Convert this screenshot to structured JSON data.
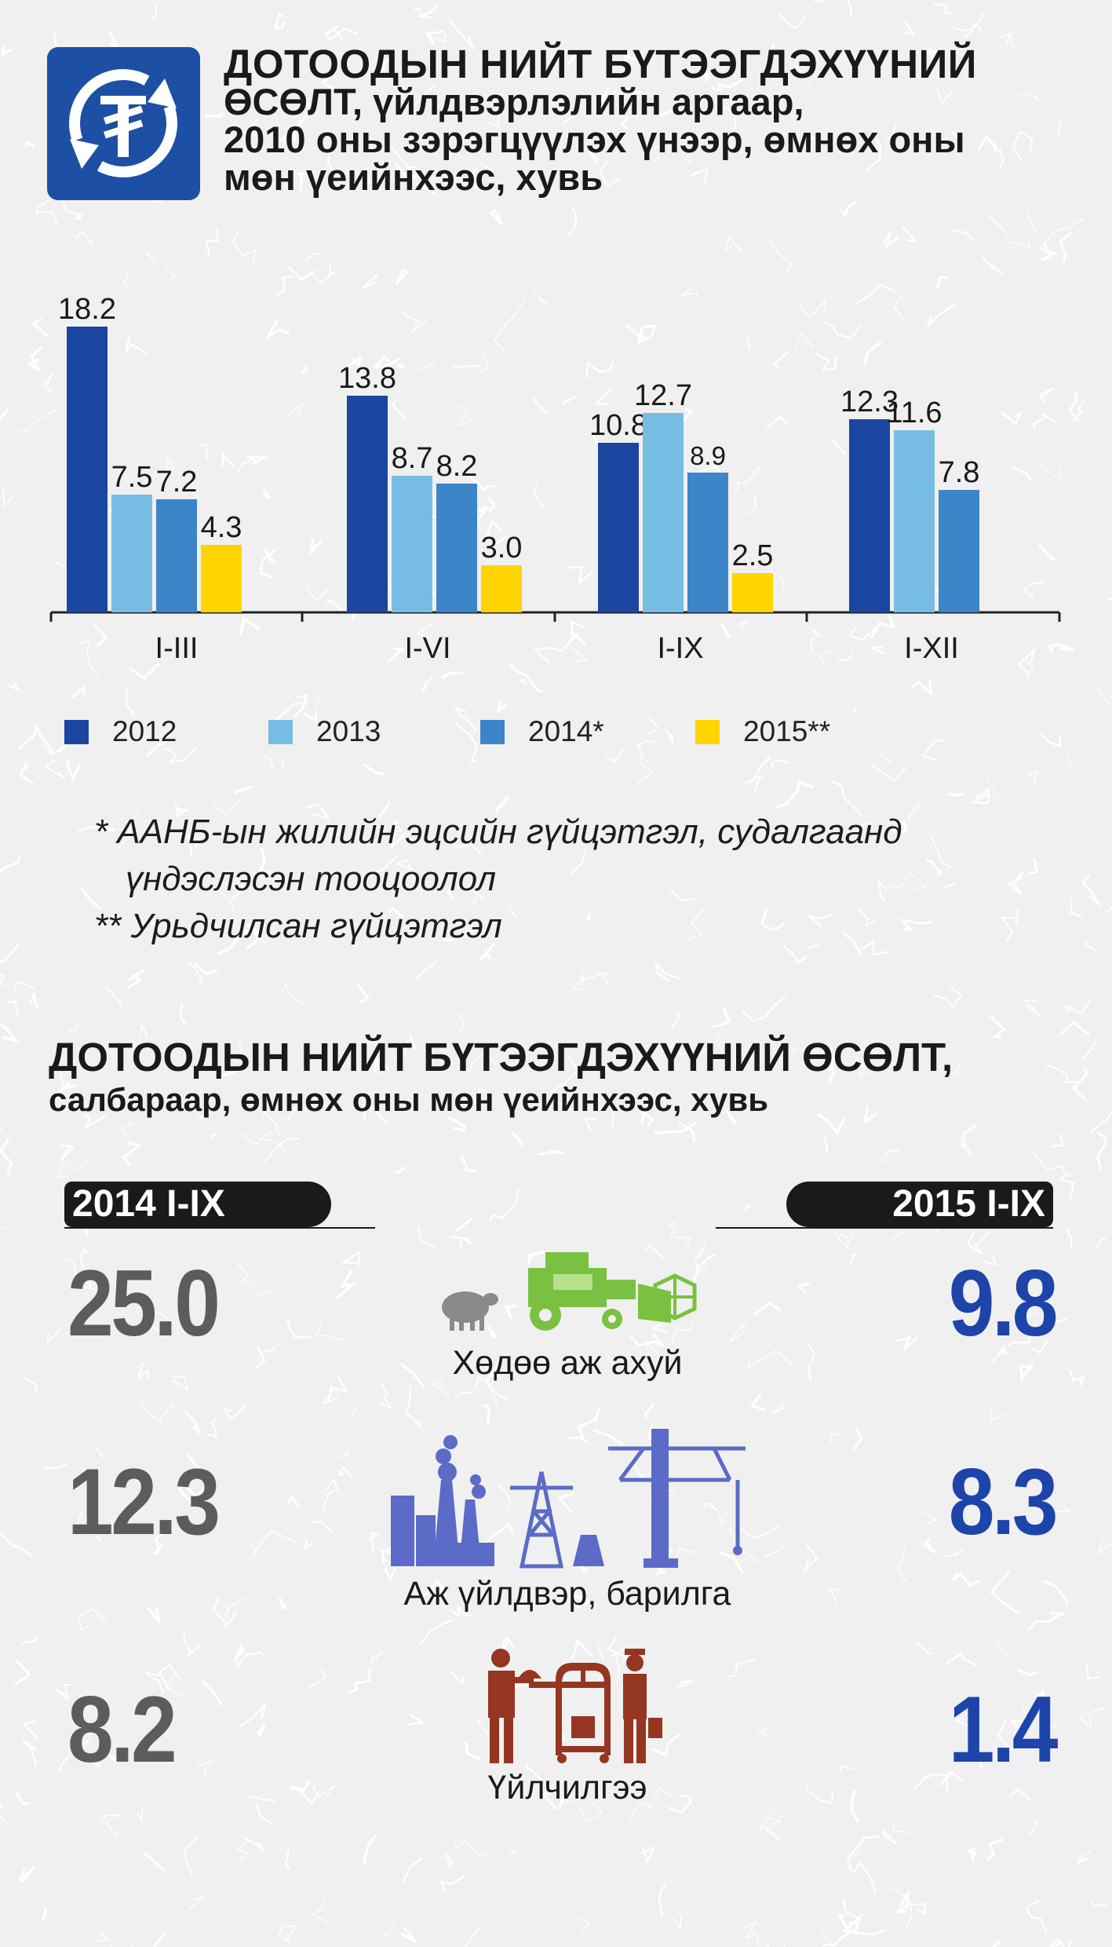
{
  "header": {
    "icon": "tugrik-exchange-icon",
    "title_line1": "ДОТООДЫН НИЙТ БҮТЭЭГДЭХҮҮНИЙ",
    "title_line2": "ӨСӨЛТ, үйлдвэрлэлийн аргаар,",
    "title_line3": "2010 оны зэрэгцүүлэх үнээр, өмнөх оны",
    "title_line4": "мөн үеийнхээс, хувь"
  },
  "chart_data": {
    "type": "bar",
    "categories": [
      "I-III",
      "I-VI",
      "I-IX",
      "I-XII"
    ],
    "series": [
      {
        "name": "2012",
        "color": "#1b46a0",
        "values": [
          18.2,
          13.8,
          10.8,
          12.3
        ]
      },
      {
        "name": "2013",
        "color": "#77bde3",
        "values": [
          7.5,
          8.7,
          12.7,
          11.6
        ]
      },
      {
        "name": "2014*",
        "color": "#3d85c9",
        "values": [
          7.2,
          8.2,
          8.9,
          7.8
        ]
      },
      {
        "name": "2015**",
        "color": "#ffd400",
        "values": [
          4.3,
          3.0,
          2.5,
          null
        ]
      }
    ],
    "ylim": [
      0,
      20
    ],
    "grid": false,
    "legend": "bottom"
  },
  "notes": {
    "line1": "* ААНБ-ын жилийн эцсийн гүйцэтгэл, судалгаанд",
    "line2": "үндэслэсэн тооцоолол",
    "line3": "** Урьдчилсан гүйцэтгэл"
  },
  "section2": {
    "title_line1": "ДОТООДЫН НИЙТ БҮТЭЭГДЭХҮҮНИЙ ӨСӨЛТ,",
    "title_line2": "салбараар, өмнөх оны мөн үеийнхээс, хувь",
    "year_left": "2014 I-IX",
    "year_right": "2015 I-IX",
    "colors": {
      "left_value": "#5c5c5c",
      "right_value": "#1d44a9"
    },
    "sectors": [
      {
        "label": "Хөдөө аж ахуй",
        "left": "25.0",
        "right": "9.8",
        "icon": "sheep-harvester-icon"
      },
      {
        "label": "Аж үйлдвэр, барилга",
        "left": "12.3",
        "right": "8.3",
        "icon": "factory-crane-icon"
      },
      {
        "label": "Үйлчилгээ",
        "left": "8.2",
        "right": "1.4",
        "icon": "waiter-porter-icon"
      }
    ]
  }
}
